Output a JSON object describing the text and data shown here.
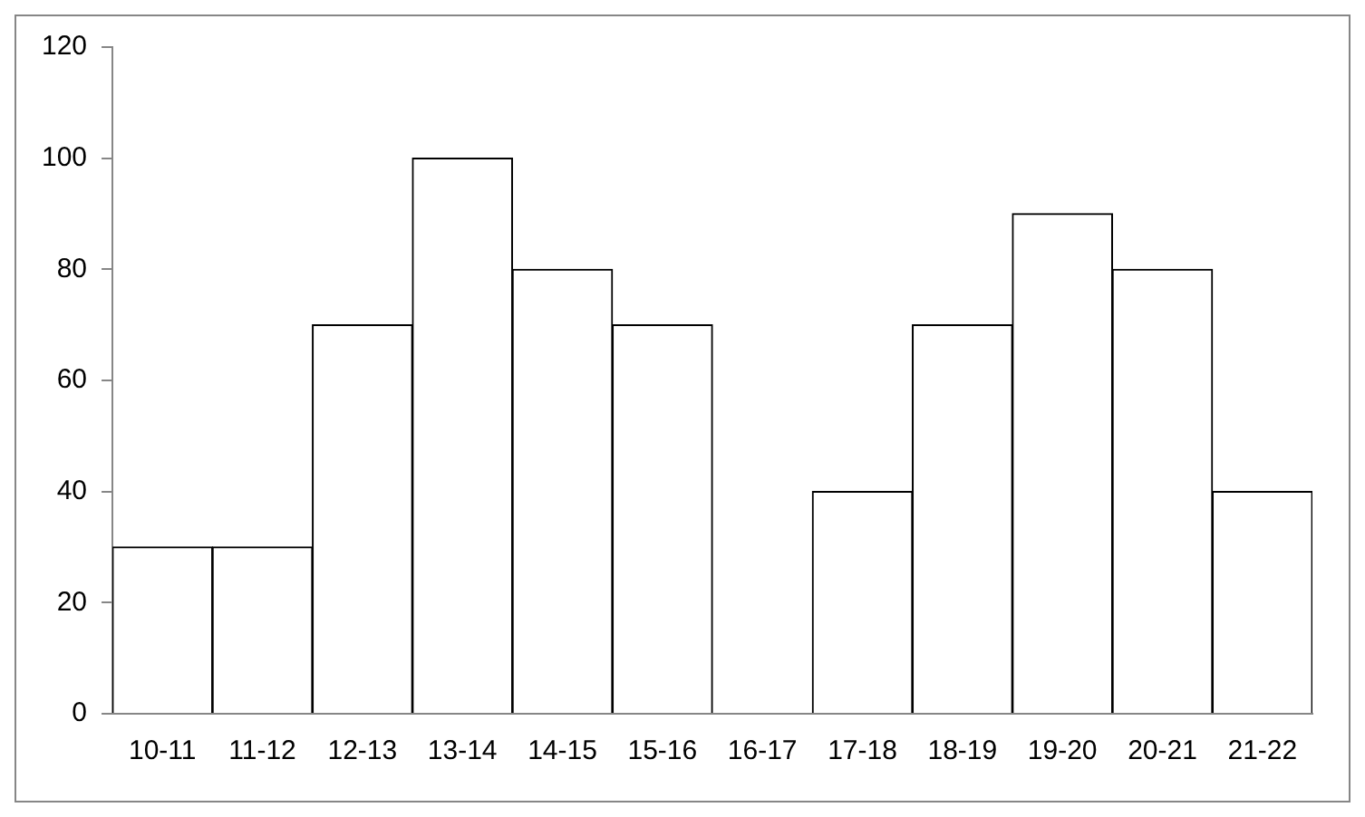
{
  "chart_data": {
    "type": "bar",
    "categories": [
      "10-11",
      "11-12",
      "12-13",
      "13-14",
      "14-15",
      "15-16",
      "16-17",
      "17-18",
      "18-19",
      "19-20",
      "20-21",
      "21-22"
    ],
    "values": [
      30,
      30,
      70,
      100,
      80,
      70,
      0,
      40,
      70,
      90,
      80,
      40
    ],
    "color": "#ffffff",
    "ylim": [
      0,
      120
    ],
    "yticks": [
      0,
      20,
      40,
      60,
      80,
      100,
      120
    ],
    "grid": false,
    "legend": false
  }
}
